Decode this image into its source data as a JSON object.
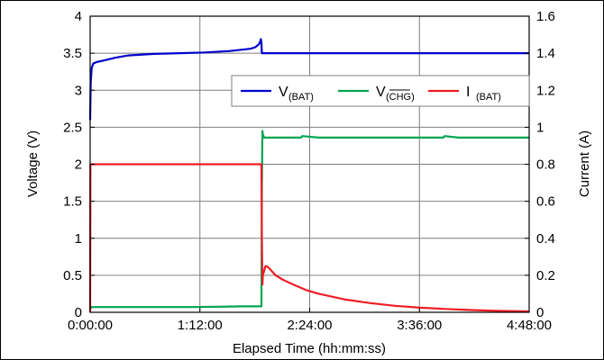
{
  "chart_data": {
    "type": "line",
    "xlabel": "Elapsed Time (hh:mm:ss)",
    "ylabel_left": "Voltage (V)",
    "ylabel_right": "Current (A)",
    "x_ticks": [
      "0:00:00",
      "1:12:00",
      "2:24:00",
      "3:36:00",
      "4:48:00"
    ],
    "x_tick_values": [
      0,
      4320,
      8640,
      12960,
      17280
    ],
    "xlim": [
      0,
      17280
    ],
    "ylim_left": [
      0,
      4
    ],
    "ylim_right": [
      0,
      1.6
    ],
    "y_ticks_left": [
      "0",
      "0.5",
      "1",
      "1.5",
      "2",
      "2.5",
      "3",
      "3.5",
      "4"
    ],
    "y_ticks_right": [
      "0",
      "0.2",
      "0.4",
      "0.6",
      "0.8",
      "1",
      "1.2",
      "1.4",
      "1.6"
    ],
    "grid": true,
    "legend_position": "top-right",
    "series": [
      {
        "name_main": "V",
        "name_sub": "(BAT)",
        "axis": "left",
        "color": "#0000cc",
        "x": [
          0,
          20,
          60,
          120,
          250,
          500,
          1000,
          1500,
          2500,
          3500,
          4500,
          5500,
          6300,
          6500,
          6640,
          6700,
          6720,
          6740,
          6760,
          6800,
          8000,
          10000,
          12000,
          14000,
          16000,
          17280
        ],
        "y": [
          2.6,
          3.1,
          3.3,
          3.36,
          3.38,
          3.4,
          3.44,
          3.47,
          3.49,
          3.5,
          3.51,
          3.53,
          3.56,
          3.58,
          3.62,
          3.66,
          3.69,
          3.64,
          3.5,
          3.5,
          3.5,
          3.5,
          3.5,
          3.5,
          3.5,
          3.5
        ]
      },
      {
        "name_main": "V",
        "name_sub": "(CHG)",
        "axis": "left",
        "color": "#00a651",
        "x": [
          0,
          30,
          60,
          500,
          2000,
          4000,
          6000,
          6700,
          6740,
          6760,
          6780,
          6800,
          6850,
          7000,
          7500,
          8000,
          8300,
          8350,
          9000,
          10000,
          11000,
          12000,
          13000,
          13900,
          13950,
          14500,
          16000,
          17280
        ],
        "y": [
          0.06,
          0.06,
          0.07,
          0.07,
          0.07,
          0.07,
          0.08,
          0.08,
          0.08,
          1.7,
          2.45,
          2.4,
          2.36,
          2.36,
          2.36,
          2.36,
          2.36,
          2.38,
          2.36,
          2.36,
          2.36,
          2.36,
          2.36,
          2.36,
          2.38,
          2.36,
          2.36,
          2.36
        ]
      },
      {
        "name_main": "I",
        "name_sub": "(BAT)",
        "axis": "right",
        "color": "#ee1c25",
        "x": [
          0,
          10,
          20,
          100,
          3000,
          6000,
          6740,
          6760,
          6780,
          6800,
          6900,
          7000,
          7100,
          7300,
          7600,
          8000,
          8500,
          9000,
          10000,
          11000,
          12000,
          13000,
          14000,
          15000,
          16000,
          17280
        ],
        "y": [
          0,
          0.8,
          0.8,
          0.8,
          0.8,
          0.8,
          0.8,
          0.4,
          0.15,
          0.2,
          0.25,
          0.245,
          0.23,
          0.2,
          0.175,
          0.15,
          0.12,
          0.1,
          0.07,
          0.05,
          0.035,
          0.025,
          0.018,
          0.012,
          0.008,
          0.005
        ]
      }
    ]
  }
}
